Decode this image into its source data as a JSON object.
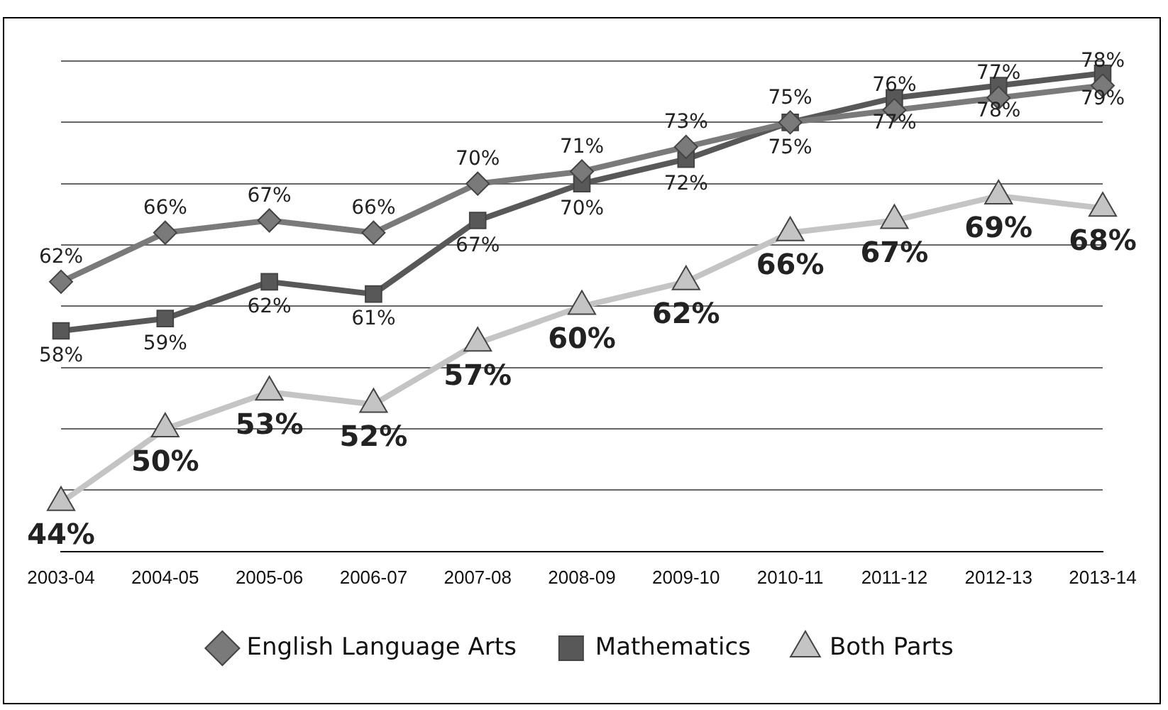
{
  "chart_data": {
    "type": "line",
    "categories": [
      "2003-04",
      "2004-05",
      "2005-06",
      "2006-07",
      "2007-08",
      "2008-09",
      "2009-10",
      "2010-11",
      "2011-12",
      "2012-13",
      "2013-14"
    ],
    "series": [
      {
        "name": "English Language Arts",
        "color": "#7a7a7a",
        "marker": "diamond",
        "values": [
          62,
          66,
          67,
          66,
          70,
          71,
          73,
          75,
          76,
          77,
          78
        ],
        "value_labels": [
          "62%",
          "66%",
          "67%",
          "66%",
          "70%",
          "71%",
          "73%",
          "75%",
          "76%",
          "77%",
          "78%"
        ]
      },
      {
        "name": "Mathematics",
        "color": "#585858",
        "marker": "square",
        "values": [
          58,
          59,
          62,
          61,
          67,
          70,
          72,
          75,
          77,
          78,
          79
        ],
        "value_labels": [
          "58%",
          "59%",
          "62%",
          "61%",
          "67%",
          "70%",
          "72%",
          "75%",
          "77%",
          "78%",
          "79%"
        ]
      },
      {
        "name": "Both Parts",
        "color": "#c4c4c4",
        "marker": "triangle",
        "values": [
          44,
          50,
          53,
          52,
          57,
          60,
          62,
          66,
          67,
          69,
          68
        ],
        "value_labels": [
          "44%",
          "50%",
          "53%",
          "52%",
          "57%",
          "60%",
          "62%",
          "66%",
          "67%",
          "69%",
          "68%"
        ]
      }
    ],
    "tick_labels": "x",
    "grid": "y",
    "legend": "bottom",
    "line_style": "solid"
  }
}
